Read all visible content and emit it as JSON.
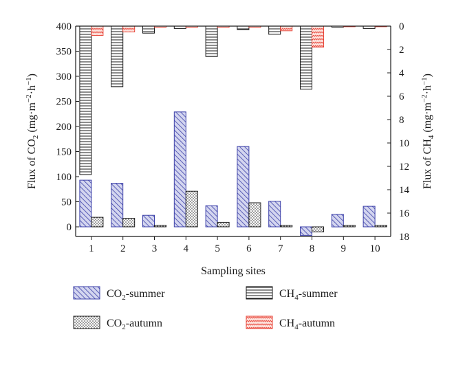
{
  "chart_data": {
    "type": "bar",
    "categories": [
      "1",
      "2",
      "3",
      "4",
      "5",
      "6",
      "7",
      "8",
      "9",
      "10"
    ],
    "xlabel": "Sampling sites",
    "ylabel_left": {
      "main": "Flux of CO",
      "sub": "2",
      "unit": "(mg·m",
      "sup1": "−2",
      "mid": "·h",
      "sup2": "−1",
      "end": ")"
    },
    "ylabel_right": {
      "main": "Flux of CH",
      "sub": "4",
      "unit": "(mg·m",
      "sup1": "−2",
      "mid": "·h",
      "sup2": "−1",
      "end": ")"
    },
    "left_axis": {
      "range": [
        -20,
        400
      ],
      "ticks": [
        0,
        50,
        100,
        150,
        200,
        250,
        300,
        350,
        400
      ]
    },
    "right_axis": {
      "range": [
        0,
        18
      ],
      "inverted": true,
      "ticks": [
        0,
        2,
        4,
        6,
        8,
        10,
        12,
        14,
        16,
        18
      ]
    },
    "grid": false,
    "legend_position": "bottom",
    "series": [
      {
        "name": "CO2-summer",
        "legend": {
          "base": "CO",
          "sub": "2",
          "suffix": "-summer"
        },
        "axis": "left",
        "pattern": "diagonal-blue",
        "values": [
          93,
          87,
          23,
          229,
          42,
          160,
          51,
          -17,
          25,
          41
        ]
      },
      {
        "name": "CO2-autumn",
        "legend": {
          "base": "CO",
          "sub": "2",
          "suffix": "-autumn"
        },
        "axis": "left",
        "pattern": "dots",
        "values": [
          19,
          17,
          3,
          71,
          9,
          48,
          3,
          -10,
          3,
          3
        ]
      },
      {
        "name": "CH4-summer",
        "legend": {
          "base": "CH",
          "sub": "4",
          "suffix": "-summer"
        },
        "axis": "right",
        "pattern": "horizontal-lines",
        "values": [
          12.7,
          5.2,
          0.6,
          0.2,
          2.6,
          0.3,
          0.7,
          5.4,
          0.1,
          0.2
        ]
      },
      {
        "name": "CH4-autumn",
        "legend": {
          "base": "CH",
          "sub": "4",
          "suffix": "-autumn"
        },
        "axis": "right",
        "pattern": "red-waves",
        "values": [
          0.8,
          0.5,
          0.1,
          0.1,
          0.1,
          0.1,
          0.4,
          1.8,
          0.05,
          0.05
        ]
      }
    ],
    "colors": {
      "co2_summer": "#3b3fa8",
      "co2_summer_fill": "#c9cbea",
      "ch4_autumn": "#e8463a",
      "ch4_autumn_fill": "#fbd6d0",
      "axis": "#1a1a1a"
    }
  }
}
